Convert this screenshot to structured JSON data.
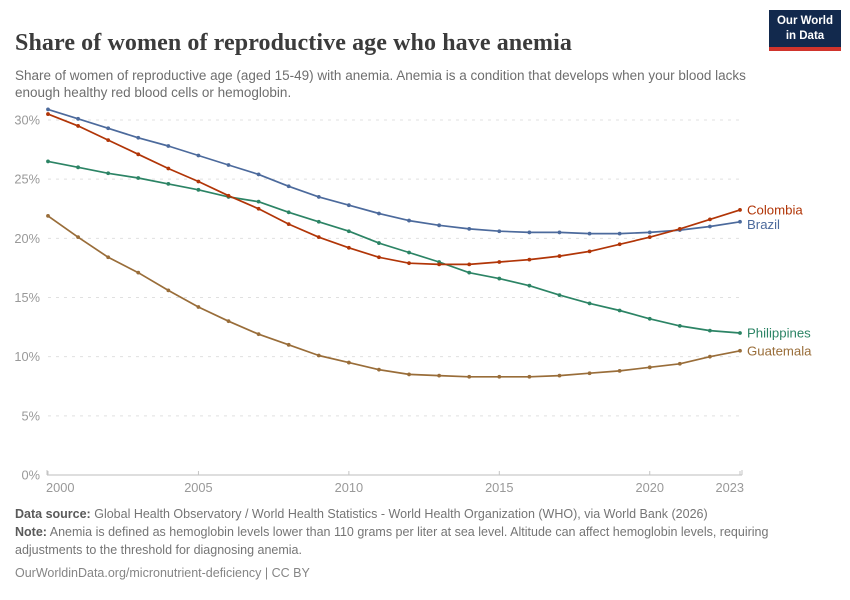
{
  "header": {
    "title": "Share of women of reproductive age who have anemia",
    "subtitle": "Share of women of reproductive age (aged 15-49) with anemia. Anemia is a condition that develops when your blood lacks enough healthy red blood cells or hemoglobin.",
    "logo": {
      "line1": "Our World",
      "line2": "in Data",
      "bg_color": "#12294d",
      "accent_color": "#d0342c"
    }
  },
  "chart_data": {
    "type": "line",
    "title": "Share of women of reproductive age who have anemia",
    "xlabel": "",
    "ylabel": "",
    "xlim": [
      2000,
      2023
    ],
    "ylim": [
      0,
      30
    ],
    "grid": "horizontal-dashed",
    "legend_position": "end-of-line-labels",
    "ytick_suffix": "%",
    "yticks": [
      0,
      5,
      10,
      15,
      20,
      25,
      30
    ],
    "xticks": [
      2000,
      2005,
      2010,
      2015,
      2020,
      2023
    ],
    "x": [
      2000,
      2001,
      2002,
      2003,
      2004,
      2005,
      2006,
      2007,
      2008,
      2009,
      2010,
      2011,
      2012,
      2013,
      2014,
      2015,
      2016,
      2017,
      2018,
      2019,
      2020,
      2021,
      2022,
      2023
    ],
    "series": [
      {
        "name": "Colombia",
        "color": "#B13507",
        "values": [
          30.5,
          29.5,
          28.3,
          27.1,
          25.9,
          24.8,
          23.6,
          22.5,
          21.2,
          20.1,
          19.2,
          18.4,
          17.9,
          17.8,
          17.8,
          18.0,
          18.2,
          18.5,
          18.9,
          19.5,
          20.1,
          20.8,
          21.6,
          22.4
        ]
      },
      {
        "name": "Brazil",
        "color": "#4C6A9C",
        "values": [
          30.9,
          30.1,
          29.3,
          28.5,
          27.8,
          27.0,
          26.2,
          25.4,
          24.4,
          23.5,
          22.8,
          22.1,
          21.5,
          21.1,
          20.8,
          20.6,
          20.5,
          20.5,
          20.4,
          20.4,
          20.5,
          20.7,
          21.0,
          21.4
        ]
      },
      {
        "name": "Philippines",
        "color": "#2C8465",
        "values": [
          26.5,
          26.0,
          25.5,
          25.1,
          24.6,
          24.1,
          23.5,
          23.1,
          22.2,
          21.4,
          20.6,
          19.6,
          18.8,
          18.0,
          17.1,
          16.6,
          16.0,
          15.2,
          14.5,
          13.9,
          13.2,
          12.6,
          12.2,
          12.0
        ]
      },
      {
        "name": "Guatemala",
        "color": "#996D39",
        "values": [
          21.9,
          20.1,
          18.4,
          17.1,
          15.6,
          14.2,
          13.0,
          11.9,
          11.0,
          10.1,
          9.5,
          8.9,
          8.5,
          8.4,
          8.3,
          8.3,
          8.3,
          8.4,
          8.6,
          8.8,
          9.1,
          9.4,
          10.0,
          10.5
        ]
      }
    ]
  },
  "footer": {
    "data_source_label": "Data source:",
    "data_source": "Global Health Observatory / World Health Statistics - World Health Organization (WHO), via World Bank (2026)",
    "note_label": "Note:",
    "note": "Anemia is defined as hemoglobin levels lower than 110 grams per liter at sea level. Altitude can affect hemoglobin levels, requiring adjustments to the threshold for diagnosing anemia.",
    "citation": "OurWorldinData.org/micronutrient-deficiency | CC BY"
  }
}
